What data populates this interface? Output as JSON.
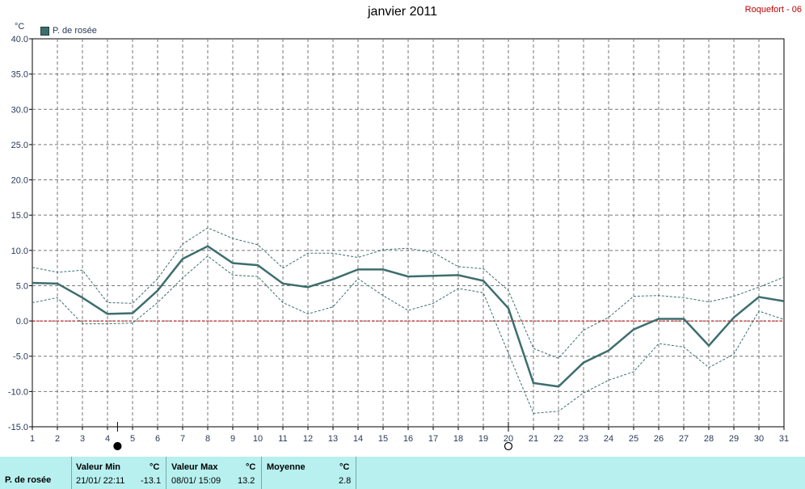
{
  "header": {
    "title": "janvier 2011",
    "station": "Roquefort - 06",
    "unit": "°C"
  },
  "legend": {
    "label": "P. de rosée",
    "color": "#3d6e6e"
  },
  "chart_data": {
    "type": "line",
    "x": [
      1,
      2,
      3,
      4,
      5,
      6,
      7,
      8,
      9,
      10,
      11,
      12,
      13,
      14,
      15,
      16,
      17,
      18,
      19,
      20,
      21,
      22,
      23,
      24,
      25,
      26,
      27,
      28,
      29,
      30,
      31
    ],
    "xlim": [
      1,
      31
    ],
    "ylim": [
      -15,
      40
    ],
    "yticks": [
      "40.0",
      "35.0",
      "30.0",
      "25.0",
      "20.0",
      "15.0",
      "10.0",
      "5.0",
      "0.0",
      "-5.0",
      "-10.0",
      "-15.0"
    ],
    "xticks": [
      "1",
      "2",
      "3",
      "4",
      "5",
      "6",
      "7",
      "8",
      "9",
      "10",
      "11",
      "12",
      "13",
      "14",
      "15",
      "16",
      "17",
      "18",
      "19",
      "20",
      "21",
      "22",
      "23",
      "24",
      "25",
      "26",
      "27",
      "28",
      "29",
      "30",
      "31"
    ],
    "grid": true,
    "series": [
      {
        "name": "P. de rosée",
        "role": "mean",
        "color": "#3d6e6e",
        "values": [
          5.4,
          5.3,
          3.3,
          1.0,
          1.1,
          4.3,
          8.8,
          10.6,
          8.2,
          7.9,
          5.3,
          4.8,
          5.9,
          7.3,
          7.3,
          6.3,
          6.4,
          6.5,
          5.7,
          1.8,
          -8.8,
          -9.3,
          -5.9,
          -4.2,
          -1.2,
          0.3,
          0.3,
          -3.5,
          0.5,
          3.4,
          2.8
        ]
      },
      {
        "role": "max",
        "color": "#3d6e6e",
        "values": [
          7.6,
          6.9,
          7.2,
          2.6,
          2.5,
          6.0,
          10.9,
          13.2,
          11.7,
          10.8,
          7.5,
          9.6,
          9.6,
          9.0,
          10.1,
          10.3,
          9.7,
          7.7,
          7.4,
          4.3,
          -3.9,
          -5.3,
          -1.3,
          0.5,
          3.5,
          3.6,
          3.3,
          2.7,
          3.5,
          4.8,
          6.2
        ]
      },
      {
        "role": "min",
        "color": "#3d6e6e",
        "values": [
          2.6,
          3.3,
          -0.4,
          -0.4,
          -0.3,
          2.6,
          6.1,
          9.2,
          6.5,
          6.3,
          2.6,
          1.0,
          2.0,
          6.0,
          3.6,
          1.5,
          2.5,
          4.6,
          4.0,
          -4.6,
          -13.1,
          -12.8,
          -10.2,
          -8.4,
          -7.2,
          -3.2,
          -3.7,
          -6.6,
          -4.7,
          1.4,
          0.2
        ]
      }
    ],
    "reference_line": {
      "value": 0,
      "color": "#c00000"
    },
    "moon_markers": [
      {
        "day": 4.4,
        "phase": "new-moon"
      },
      {
        "day": 20,
        "phase": "full-moon"
      }
    ]
  },
  "footer": {
    "label": "P. de rosée",
    "min_head": "Valeur Min",
    "min_unit": "°C",
    "min_date": "21/01/  22:11",
    "min_value": "-13.1",
    "max_head": "Valeur Max",
    "max_unit": "°C",
    "max_date": "08/01/  15:09",
    "max_value": "13.2",
    "avg_head": "Moyenne",
    "avg_unit": "°C",
    "avg_value": "2.8"
  }
}
